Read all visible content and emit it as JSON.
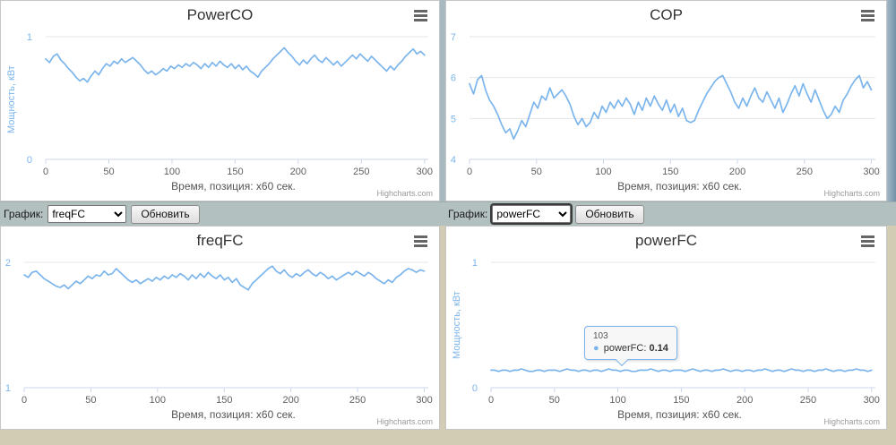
{
  "credits_label": "Highcharts.com",
  "colors": {
    "series": "#7cb5ec",
    "control_bar_bg": "#b2c0bf",
    "page_bg": "#d3ccb4",
    "window_edge": "#7390a7"
  },
  "controls": [
    {
      "label": "График:",
      "selected_option": "freqFC",
      "refresh_button": "Обновить"
    },
    {
      "label": "График:",
      "selected_option": "powerFC",
      "refresh_button": "Обновить"
    }
  ],
  "tooltip": {
    "chart": "powerFC",
    "header": "103",
    "series_label": "powerFC:",
    "value": "0.14",
    "point_x": 103,
    "point_y": 0.14
  },
  "chart_data": [
    {
      "type": "line",
      "title": "PowerCO",
      "xlabel": "Время, позиция: x60 сек.",
      "ylabel": "Мощность, кВт",
      "xlim": [
        0,
        303
      ],
      "xticks": [
        0,
        50,
        100,
        150,
        200,
        250,
        300
      ],
      "ylim": [
        0,
        1
      ],
      "yticks": [
        0,
        1
      ],
      "grid": "horizontal",
      "legend": "none",
      "series": [
        {
          "name": "PowerCO",
          "color": "#7cb5ec",
          "x_start": 0,
          "x_step": 3,
          "values": [
            0.82,
            0.79,
            0.84,
            0.86,
            0.81,
            0.78,
            0.74,
            0.71,
            0.67,
            0.64,
            0.66,
            0.63,
            0.68,
            0.72,
            0.69,
            0.74,
            0.78,
            0.76,
            0.8,
            0.78,
            0.82,
            0.79,
            0.81,
            0.83,
            0.8,
            0.77,
            0.73,
            0.7,
            0.72,
            0.69,
            0.71,
            0.74,
            0.72,
            0.76,
            0.74,
            0.77,
            0.75,
            0.78,
            0.76,
            0.79,
            0.77,
            0.74,
            0.78,
            0.75,
            0.79,
            0.76,
            0.8,
            0.77,
            0.75,
            0.78,
            0.74,
            0.77,
            0.73,
            0.76,
            0.72,
            0.7,
            0.67,
            0.72,
            0.75,
            0.78,
            0.82,
            0.85,
            0.88,
            0.91,
            0.87,
            0.84,
            0.8,
            0.77,
            0.81,
            0.78,
            0.82,
            0.85,
            0.81,
            0.79,
            0.83,
            0.8,
            0.77,
            0.8,
            0.76,
            0.79,
            0.82,
            0.85,
            0.82,
            0.86,
            0.83,
            0.8,
            0.84,
            0.81,
            0.78,
            0.75,
            0.72,
            0.76,
            0.73,
            0.77,
            0.8,
            0.84,
            0.87,
            0.9,
            0.86,
            0.88,
            0.85
          ]
        }
      ]
    },
    {
      "type": "line",
      "title": "COP",
      "xlabel": "Время, позиция: x60 сек.",
      "ylabel": "",
      "xlim": [
        0,
        303
      ],
      "xticks": [
        0,
        50,
        100,
        150,
        200,
        250,
        300
      ],
      "ylim": [
        4,
        7
      ],
      "yticks": [
        4,
        5,
        6,
        7
      ],
      "grid": "horizontal",
      "legend": "none",
      "series": [
        {
          "name": "COP",
          "color": "#7cb5ec",
          "x_start": 0,
          "x_step": 3,
          "values": [
            5.85,
            5.6,
            5.95,
            6.05,
            5.7,
            5.45,
            5.3,
            5.1,
            4.85,
            4.65,
            4.75,
            4.5,
            4.7,
            4.95,
            4.8,
            5.1,
            5.4,
            5.25,
            5.55,
            5.45,
            5.75,
            5.5,
            5.6,
            5.7,
            5.55,
            5.35,
            5.05,
            4.85,
            5.0,
            4.8,
            4.9,
            5.15,
            5.0,
            5.3,
            5.15,
            5.4,
            5.25,
            5.45,
            5.3,
            5.5,
            5.35,
            5.1,
            5.4,
            5.2,
            5.5,
            5.3,
            5.55,
            5.35,
            5.2,
            5.45,
            5.15,
            5.35,
            5.05,
            5.25,
            4.95,
            4.9,
            4.95,
            5.2,
            5.4,
            5.6,
            5.75,
            5.9,
            6.0,
            6.05,
            5.85,
            5.65,
            5.4,
            5.25,
            5.5,
            5.3,
            5.55,
            5.75,
            5.5,
            5.4,
            5.65,
            5.45,
            5.25,
            5.5,
            5.15,
            5.35,
            5.6,
            5.8,
            5.55,
            5.85,
            5.6,
            5.4,
            5.7,
            5.45,
            5.2,
            5.0,
            5.1,
            5.3,
            5.15,
            5.45,
            5.6,
            5.8,
            5.95,
            6.05,
            5.75,
            5.9,
            5.7
          ]
        }
      ]
    },
    {
      "type": "line",
      "title": "freqFC",
      "xlabel": "Время, позиция: x60 сек.",
      "ylabel": "",
      "xlim": [
        0,
        303
      ],
      "xticks": [
        0,
        50,
        100,
        150,
        200,
        250,
        300
      ],
      "ylim": [
        1,
        2
      ],
      "yticks": [
        1,
        2
      ],
      "grid": "horizontal",
      "legend": "none",
      "series": [
        {
          "name": "freqFC",
          "color": "#7cb5ec",
          "x_start": 0,
          "x_step": 3,
          "values": [
            1.9,
            1.88,
            1.92,
            1.93,
            1.9,
            1.87,
            1.85,
            1.83,
            1.81,
            1.8,
            1.82,
            1.79,
            1.82,
            1.85,
            1.83,
            1.86,
            1.89,
            1.87,
            1.9,
            1.89,
            1.93,
            1.9,
            1.91,
            1.95,
            1.92,
            1.89,
            1.86,
            1.84,
            1.86,
            1.83,
            1.85,
            1.87,
            1.85,
            1.88,
            1.86,
            1.89,
            1.87,
            1.9,
            1.88,
            1.91,
            1.89,
            1.86,
            1.9,
            1.87,
            1.91,
            1.88,
            1.92,
            1.89,
            1.87,
            1.9,
            1.86,
            1.88,
            1.84,
            1.87,
            1.82,
            1.8,
            1.78,
            1.83,
            1.86,
            1.89,
            1.92,
            1.95,
            1.97,
            1.93,
            1.91,
            1.94,
            1.9,
            1.88,
            1.91,
            1.89,
            1.92,
            1.94,
            1.91,
            1.89,
            1.92,
            1.9,
            1.87,
            1.89,
            1.86,
            1.88,
            1.9,
            1.92,
            1.9,
            1.93,
            1.91,
            1.89,
            1.92,
            1.9,
            1.87,
            1.85,
            1.83,
            1.86,
            1.84,
            1.88,
            1.9,
            1.93,
            1.95,
            1.94,
            1.92,
            1.94,
            1.93
          ]
        }
      ]
    },
    {
      "type": "line",
      "title": "powerFC",
      "xlabel": "Время, позиция: x60 сек.",
      "ylabel": "Мощность, кВт",
      "xlim": [
        0,
        303
      ],
      "xticks": [
        0,
        50,
        100,
        150,
        200,
        250,
        300
      ],
      "ylim": [
        0,
        1
      ],
      "yticks": [
        0,
        1
      ],
      "grid": "horizontal",
      "legend": "none",
      "series": [
        {
          "name": "powerFC",
          "color": "#7cb5ec",
          "x_start": 0,
          "x_step": 3,
          "values": [
            0.14,
            0.14,
            0.13,
            0.14,
            0.14,
            0.13,
            0.14,
            0.14,
            0.15,
            0.14,
            0.13,
            0.13,
            0.14,
            0.14,
            0.13,
            0.14,
            0.14,
            0.14,
            0.13,
            0.14,
            0.15,
            0.14,
            0.14,
            0.13,
            0.14,
            0.14,
            0.13,
            0.14,
            0.14,
            0.13,
            0.14,
            0.15,
            0.14,
            0.14,
            0.13,
            0.14,
            0.14,
            0.13,
            0.13,
            0.14,
            0.14,
            0.14,
            0.15,
            0.14,
            0.13,
            0.14,
            0.14,
            0.13,
            0.14,
            0.14,
            0.14,
            0.13,
            0.14,
            0.15,
            0.14,
            0.13,
            0.14,
            0.14,
            0.13,
            0.14,
            0.14,
            0.15,
            0.14,
            0.13,
            0.14,
            0.14,
            0.13,
            0.14,
            0.14,
            0.13,
            0.14,
            0.14,
            0.15,
            0.14,
            0.13,
            0.14,
            0.14,
            0.13,
            0.14,
            0.15,
            0.14,
            0.14,
            0.13,
            0.14,
            0.14,
            0.13,
            0.14,
            0.14,
            0.15,
            0.14,
            0.13,
            0.14,
            0.14,
            0.13,
            0.14,
            0.14,
            0.15,
            0.14,
            0.14,
            0.13,
            0.14
          ]
        }
      ]
    }
  ]
}
